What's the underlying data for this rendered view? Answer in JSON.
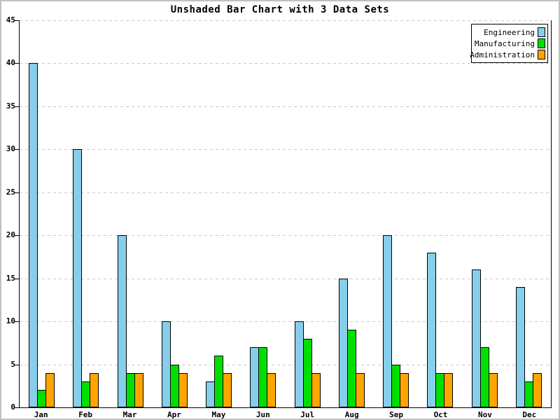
{
  "title": "Unshaded Bar Chart with 3 Data Sets",
  "chart_data": {
    "type": "bar",
    "title": "Unshaded Bar Chart with 3 Data Sets",
    "categories": [
      "Jan",
      "Feb",
      "Mar",
      "Apr",
      "May",
      "Jun",
      "Jul",
      "Aug",
      "Sep",
      "Oct",
      "Nov",
      "Dec"
    ],
    "series": [
      {
        "name": "Engineering",
        "color": "#87CEEB",
        "values": [
          40,
          30,
          20,
          10,
          3,
          7,
          10,
          15,
          20,
          18,
          16,
          14
        ]
      },
      {
        "name": "Manufacturing",
        "color": "#00DF00",
        "values": [
          2,
          3,
          4,
          5,
          6,
          7,
          8,
          9,
          5,
          4,
          7,
          3
        ]
      },
      {
        "name": "Administration",
        "color": "#FFA500",
        "values": [
          4,
          4,
          4,
          4,
          4,
          4,
          4,
          4,
          4,
          4,
          4,
          4
        ]
      }
    ],
    "xlabel": "",
    "ylabel": "",
    "ylim": [
      0,
      45
    ],
    "ytick_step": 5,
    "grid": "horizontal-dashed",
    "gridline_color": "#c9c9c9",
    "axis_color": "#000000",
    "background_color": "#ffffff",
    "legend_position": "top-right"
  }
}
